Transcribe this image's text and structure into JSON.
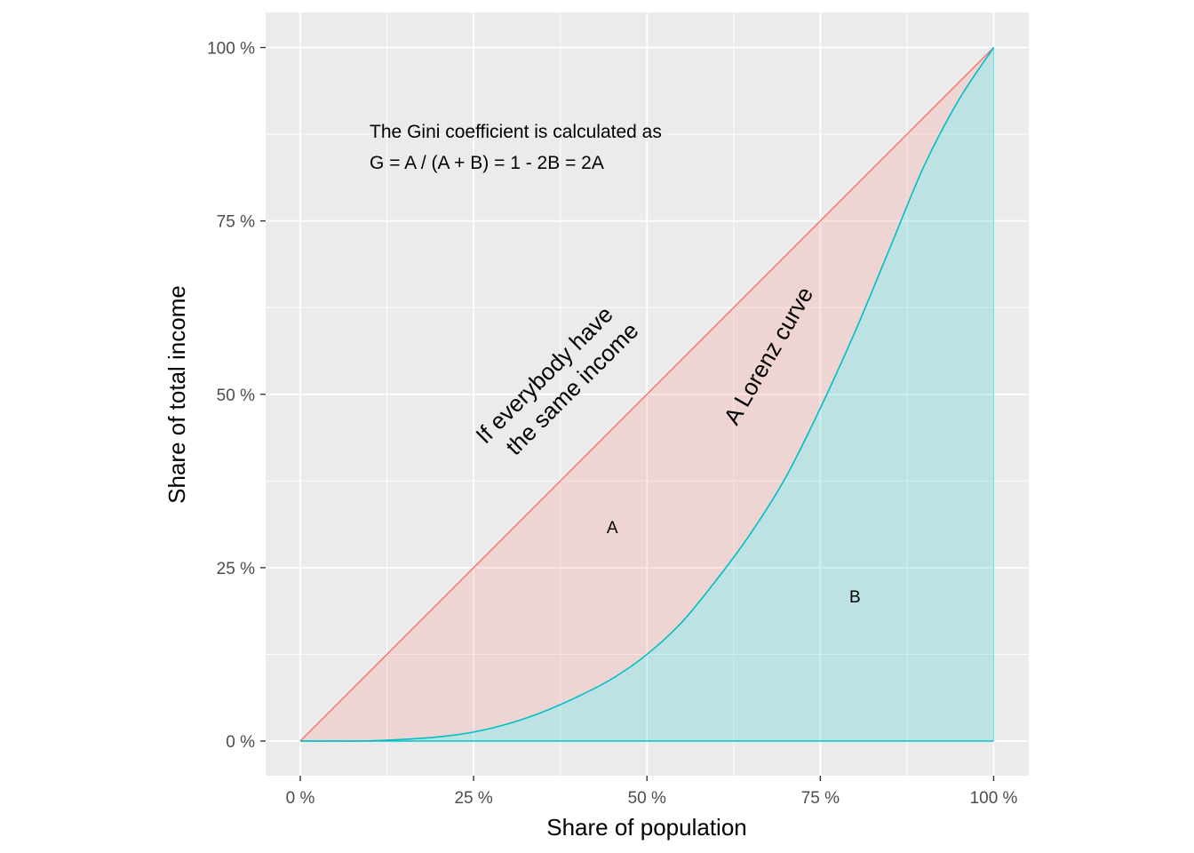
{
  "chart_data": {
    "type": "area",
    "title": "",
    "xlabel": "Share of population",
    "ylabel": "Share of total income",
    "xlim": [
      -0.05,
      1.05
    ],
    "ylim": [
      -0.05,
      1.05
    ],
    "x_ticks": [
      {
        "value": 0,
        "label": "0 %"
      },
      {
        "value": 0.25,
        "label": "25 %"
      },
      {
        "value": 0.5,
        "label": "50 %"
      },
      {
        "value": 0.75,
        "label": "75 %"
      },
      {
        "value": 1,
        "label": "100 %"
      }
    ],
    "y_ticks": [
      {
        "value": 0,
        "label": "0 %"
      },
      {
        "value": 0.25,
        "label": "25 %"
      },
      {
        "value": 0.5,
        "label": "50 %"
      },
      {
        "value": 0.75,
        "label": "75 %"
      },
      {
        "value": 1,
        "label": "100 %"
      }
    ],
    "grid": true,
    "legend": "none",
    "series": [
      {
        "role": "equality",
        "x": [
          0,
          1
        ],
        "y": [
          0,
          1
        ],
        "color": "#F8766D",
        "fill": "#F8766D",
        "fill_opacity": 0.2
      },
      {
        "role": "lorenz",
        "x": [
          0,
          0.05,
          0.1,
          0.15,
          0.2,
          0.25,
          0.3,
          0.35,
          0.4,
          0.45,
          0.5,
          0.55,
          0.6,
          0.65,
          0.7,
          0.75,
          0.8,
          0.85,
          0.9,
          0.95,
          1
        ],
        "y": [
          0,
          0,
          0.0002,
          0.0025,
          0.006,
          0.013,
          0.025,
          0.042,
          0.064,
          0.09,
          0.125,
          0.171,
          0.232,
          0.3,
          0.38,
          0.48,
          0.59,
          0.71,
          0.83,
          0.925,
          1
        ],
        "color": "#00BFC4",
        "fill": "#00BFC4",
        "fill_opacity": 0.2
      }
    ],
    "annotations": [
      {
        "id": "formula_line1",
        "text": "The Gini coefficient is calculated as",
        "x": 0.1,
        "y": 0.87
      },
      {
        "id": "formula_line2",
        "text": "G = A / (A + B) = 1 - 2B = 2A",
        "x": 0.1,
        "y": 0.825
      },
      {
        "id": "equality_line1",
        "text": "If everybody have",
        "x": 0.36,
        "y": 0.52,
        "angle": -45
      },
      {
        "id": "equality_line2",
        "text": "the same income",
        "x": 0.4,
        "y": 0.5,
        "angle": -45
      },
      {
        "id": "lorenz_label",
        "text": "A Lorenz curve",
        "x": 0.685,
        "y": 0.55,
        "angle": -60
      },
      {
        "id": "area_a",
        "text": "A",
        "x": 0.45,
        "y": 0.3
      },
      {
        "id": "area_b",
        "text": "B",
        "x": 0.8,
        "y": 0.2
      }
    ]
  }
}
